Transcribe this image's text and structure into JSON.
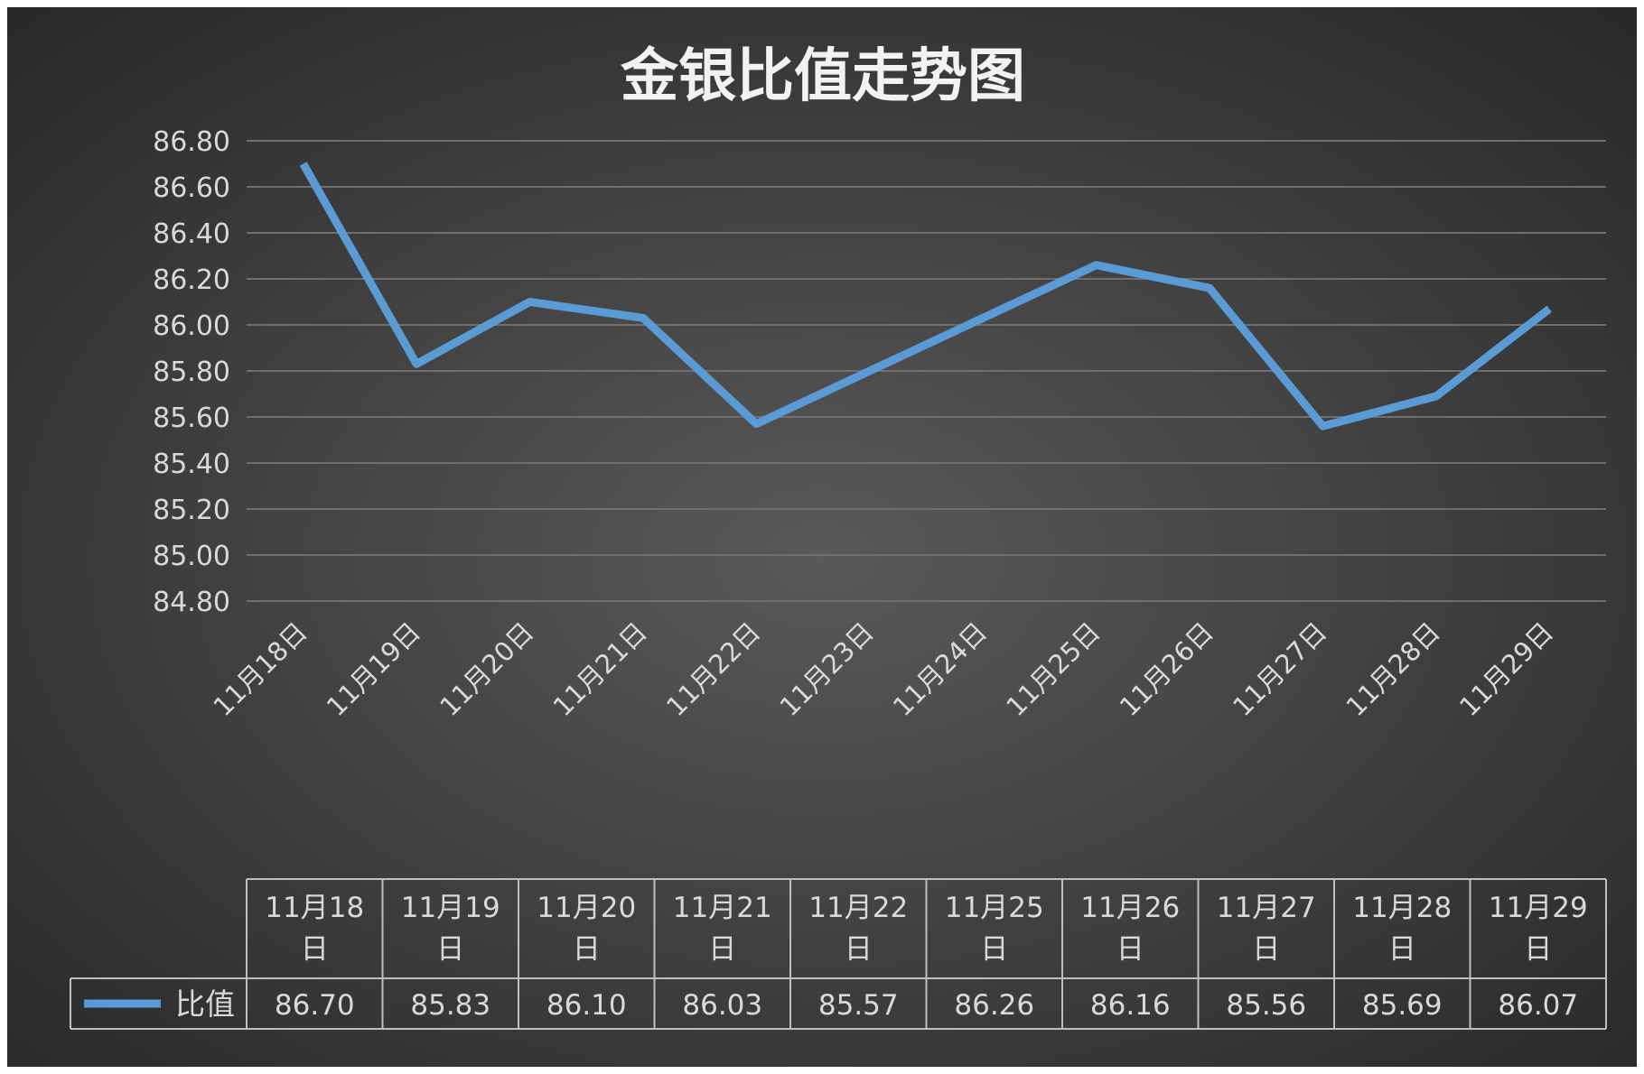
{
  "chart_data": {
    "type": "line",
    "title": "金银比值走势图",
    "categories": [
      "11月18日",
      "11月19日",
      "11月20日",
      "11月21日",
      "11月22日",
      "11月23日",
      "11月24日",
      "11月25日",
      "11月26日",
      "11月27日",
      "11月28日",
      "11月29日"
    ],
    "series": [
      {
        "name": "比值",
        "values": [
          86.7,
          85.83,
          86.1,
          86.03,
          85.57,
          null,
          null,
          86.26,
          86.16,
          85.56,
          85.69,
          86.07
        ],
        "color": "#5B9BD5",
        "connect_gaps": true
      }
    ],
    "yticks": [
      "86.80",
      "86.60",
      "86.40",
      "86.20",
      "86.00",
      "85.80",
      "85.60",
      "85.40",
      "85.20",
      "85.00",
      "84.80"
    ],
    "ylim": [
      84.8,
      86.8
    ],
    "grid": true,
    "data_table": {
      "header_top": [
        "11月18",
        "11月19",
        "11月20",
        "11月21",
        "11月22",
        "11月25",
        "11月26",
        "11月27",
        "11月28",
        "11月29"
      ],
      "header_bottom": [
        "日",
        "日",
        "日",
        "日",
        "日",
        "日",
        "日",
        "日",
        "日",
        "日"
      ],
      "series_label": "比值",
      "values": [
        "86.70",
        "85.83",
        "86.10",
        "86.03",
        "85.57",
        "86.26",
        "86.16",
        "85.56",
        "85.69",
        "86.07"
      ]
    }
  },
  "colors": {
    "background_center": "#595959",
    "background_edge": "#262626",
    "gridline": "#6f6f6f",
    "text": "#d9d9d9",
    "title": "#f2f2f2",
    "line": "#5B9BD5",
    "table_border": "#bfbfbf"
  }
}
